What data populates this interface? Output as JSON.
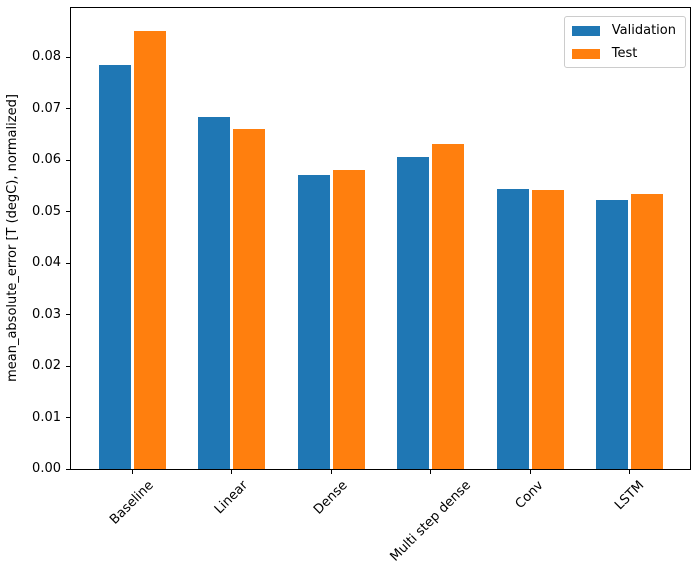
{
  "chart_data": {
    "type": "bar",
    "categories": [
      "Baseline",
      "Linear",
      "Dense",
      "Multi step dense",
      "Conv",
      "LSTM"
    ],
    "series": [
      {
        "name": "Validation",
        "color": "#1f77b4",
        "values": [
          0.0785,
          0.0685,
          0.0571,
          0.0606,
          0.0544,
          0.0523
        ]
      },
      {
        "name": "Test",
        "color": "#ff7f0e",
        "values": [
          0.0852,
          0.0661,
          0.0582,
          0.0632,
          0.0542,
          0.0534
        ]
      }
    ],
    "title": "",
    "xlabel": "",
    "ylabel": "mean_absolute_error [T (degC), normalized]",
    "ylim": [
      0,
      0.0896
    ],
    "yticks": [
      "0.00",
      "0.01",
      "0.02",
      "0.03",
      "0.04",
      "0.05",
      "0.06",
      "0.07",
      "0.08"
    ],
    "x_tick_rotation_deg": 45,
    "grid": false,
    "legend_position": "upper right",
    "axis_color": "#000000",
    "background_color": "#ffffff"
  }
}
